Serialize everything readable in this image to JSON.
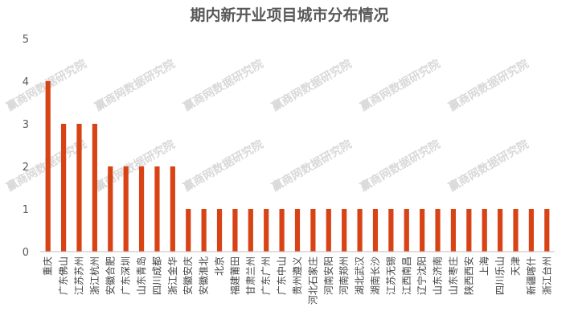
{
  "chart_data": {
    "type": "bar",
    "title": "期内新开业项目城市分布情况",
    "xlabel": "",
    "ylabel": "",
    "ylim": [
      0,
      5
    ],
    "yticks": [
      0,
      1,
      2,
      3,
      4,
      5
    ],
    "grid": false,
    "legend": "none",
    "bar_color": "#d84315",
    "watermark": "赢商网数据研究院",
    "categories": [
      "重庆",
      "广东佛山",
      "江苏苏州",
      "浙江杭州",
      "安徽合肥",
      "广东深圳",
      "山东青岛",
      "四川成都",
      "浙江金华",
      "安徽安庆",
      "安徽淮北",
      "北京",
      "福建莆田",
      "甘肃兰州",
      "广东广州",
      "广东中山",
      "贵州遵义",
      "河北石家庄",
      "河南安阳",
      "河南郑州",
      "湖北武汉",
      "湖南长沙",
      "江苏无锡",
      "江西南昌",
      "辽宁沈阳",
      "山东济南",
      "山东枣庄",
      "陕西西安",
      "上海",
      "四川乐山",
      "天津",
      "新疆喀什",
      "浙江台州"
    ],
    "values": [
      4,
      3,
      3,
      3,
      2,
      2,
      2,
      2,
      2,
      1,
      1,
      1,
      1,
      1,
      1,
      1,
      1,
      1,
      1,
      1,
      1,
      1,
      1,
      1,
      1,
      1,
      1,
      1,
      1,
      1,
      1,
      1,
      1
    ]
  }
}
